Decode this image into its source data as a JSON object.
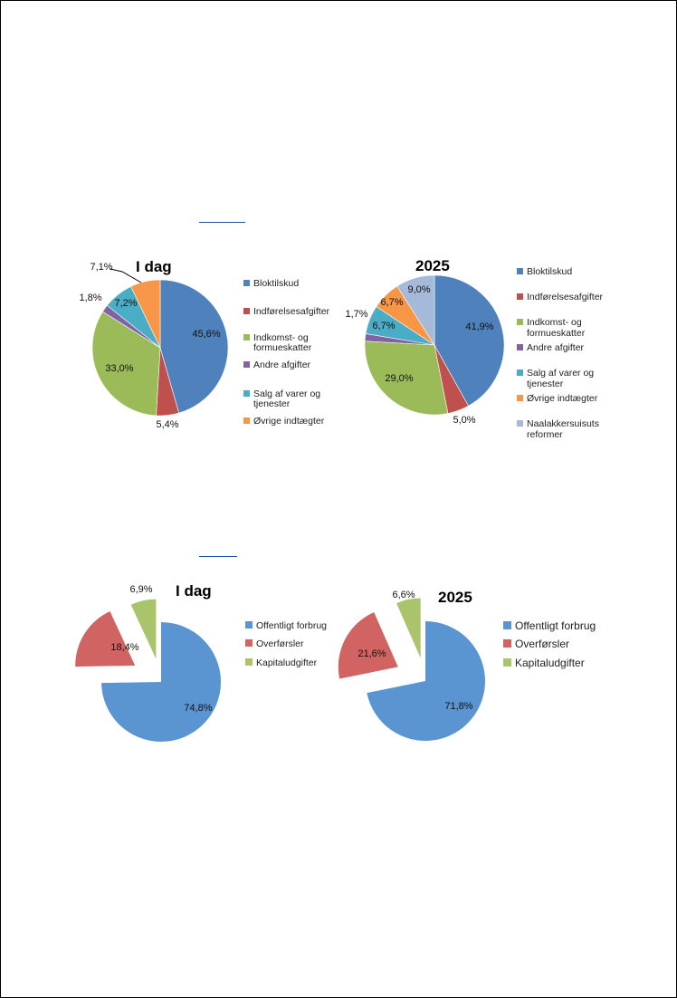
{
  "chart_data": [
    {
      "type": "pie",
      "title": "I dag",
      "slices": [
        {
          "label": "Bloktilskud",
          "value": 45.6,
          "text": "45,6%",
          "color": "#4f81bd"
        },
        {
          "label": "Indførelsesafgifter",
          "value": 5.4,
          "text": "5,4%",
          "color": "#c0504d"
        },
        {
          "label": "Indkomst- og formueskatter",
          "value": 33.0,
          "text": "33,0%",
          "color": "#9bbb59"
        },
        {
          "label": "Andre afgifter",
          "value": 1.8,
          "text": "1,8%",
          "color": "#8064a2"
        },
        {
          "label": "Salg af varer og tjenester",
          "value": 7.2,
          "text": "7,2%",
          "color": "#4bacc6"
        },
        {
          "label": "Øvrige indtægter",
          "value": 7.1,
          "text": "7,1%",
          "color": "#f79646"
        }
      ],
      "legend": [
        [
          "Bloktilskud"
        ],
        [
          "Indførelsesafgifter"
        ],
        [
          "Indkomst- og",
          "formueskatter"
        ],
        [
          "Andre afgifter"
        ],
        [
          "Salg af varer og",
          "tjenester"
        ],
        [
          "Øvrige indtægter"
        ]
      ],
      "legend_position": "right"
    },
    {
      "type": "pie",
      "title": "2025",
      "slices": [
        {
          "label": "Bloktilskud",
          "value": 41.9,
          "text": "41,9%",
          "color": "#4f81bd"
        },
        {
          "label": "Indførelsesafgifter",
          "value": 5.0,
          "text": "5,0%",
          "color": "#c0504d"
        },
        {
          "label": "Indkomst- og formueskatter",
          "value": 29.0,
          "text": "29,0%",
          "color": "#9bbb59"
        },
        {
          "label": "Andre afgifter",
          "value": 1.7,
          "text": "1,7%",
          "color": "#8064a2"
        },
        {
          "label": "Salg af varer og tjenester",
          "value": 6.7,
          "text": "6,7%",
          "color": "#4bacc6"
        },
        {
          "label": "Øvrige indtægter",
          "value": 6.7,
          "text": "6,7%",
          "color": "#f79646"
        },
        {
          "label": "Naalakkersuisuts reformer",
          "value": 9.0,
          "text": "9,0%",
          "color": "#a5b9d9"
        }
      ],
      "legend": [
        [
          "Bloktilskud"
        ],
        [
          "Indførelsesafgifter"
        ],
        [
          "Indkomst- og",
          "formueskatter"
        ],
        [
          "Andre afgifter"
        ],
        [
          "Salg af varer og",
          "tjenester"
        ],
        [
          "Øvrige indtægter"
        ],
        [
          "Naalakkersuisuts",
          "reformer"
        ]
      ],
      "legend_position": "right"
    },
    {
      "type": "pie",
      "title": "I dag",
      "exploded": true,
      "slices": [
        {
          "label": "Offentligt forbrug",
          "value": 74.8,
          "text": "74,8%",
          "color": "#5b95d1"
        },
        {
          "label": "Overførsler",
          "value": 18.4,
          "text": "18,4%",
          "color": "#d16462"
        },
        {
          "label": "Kapitaludgifter",
          "value": 6.9,
          "text": "6,9%",
          "color": "#a9c46a"
        }
      ],
      "legend": [
        [
          "Offentligt forbrug"
        ],
        [
          "Overførsler"
        ],
        [
          "Kapitaludgifter"
        ]
      ],
      "legend_position": "right"
    },
    {
      "type": "pie",
      "title": "2025",
      "exploded": true,
      "slices": [
        {
          "label": "Offentligt forbrug",
          "value": 71.8,
          "text": "71,8%",
          "color": "#5b95d1"
        },
        {
          "label": "Overførsler",
          "value": 21.6,
          "text": "21,6%",
          "color": "#d16462"
        },
        {
          "label": "Kapitaludgifter",
          "value": 6.6,
          "text": "6,6%",
          "color": "#a9c46a"
        }
      ],
      "legend": [
        [
          "Offentligt forbrug"
        ],
        [
          "Overførsler"
        ],
        [
          "Kapitaludgifter"
        ]
      ],
      "legend_position": "right"
    }
  ]
}
